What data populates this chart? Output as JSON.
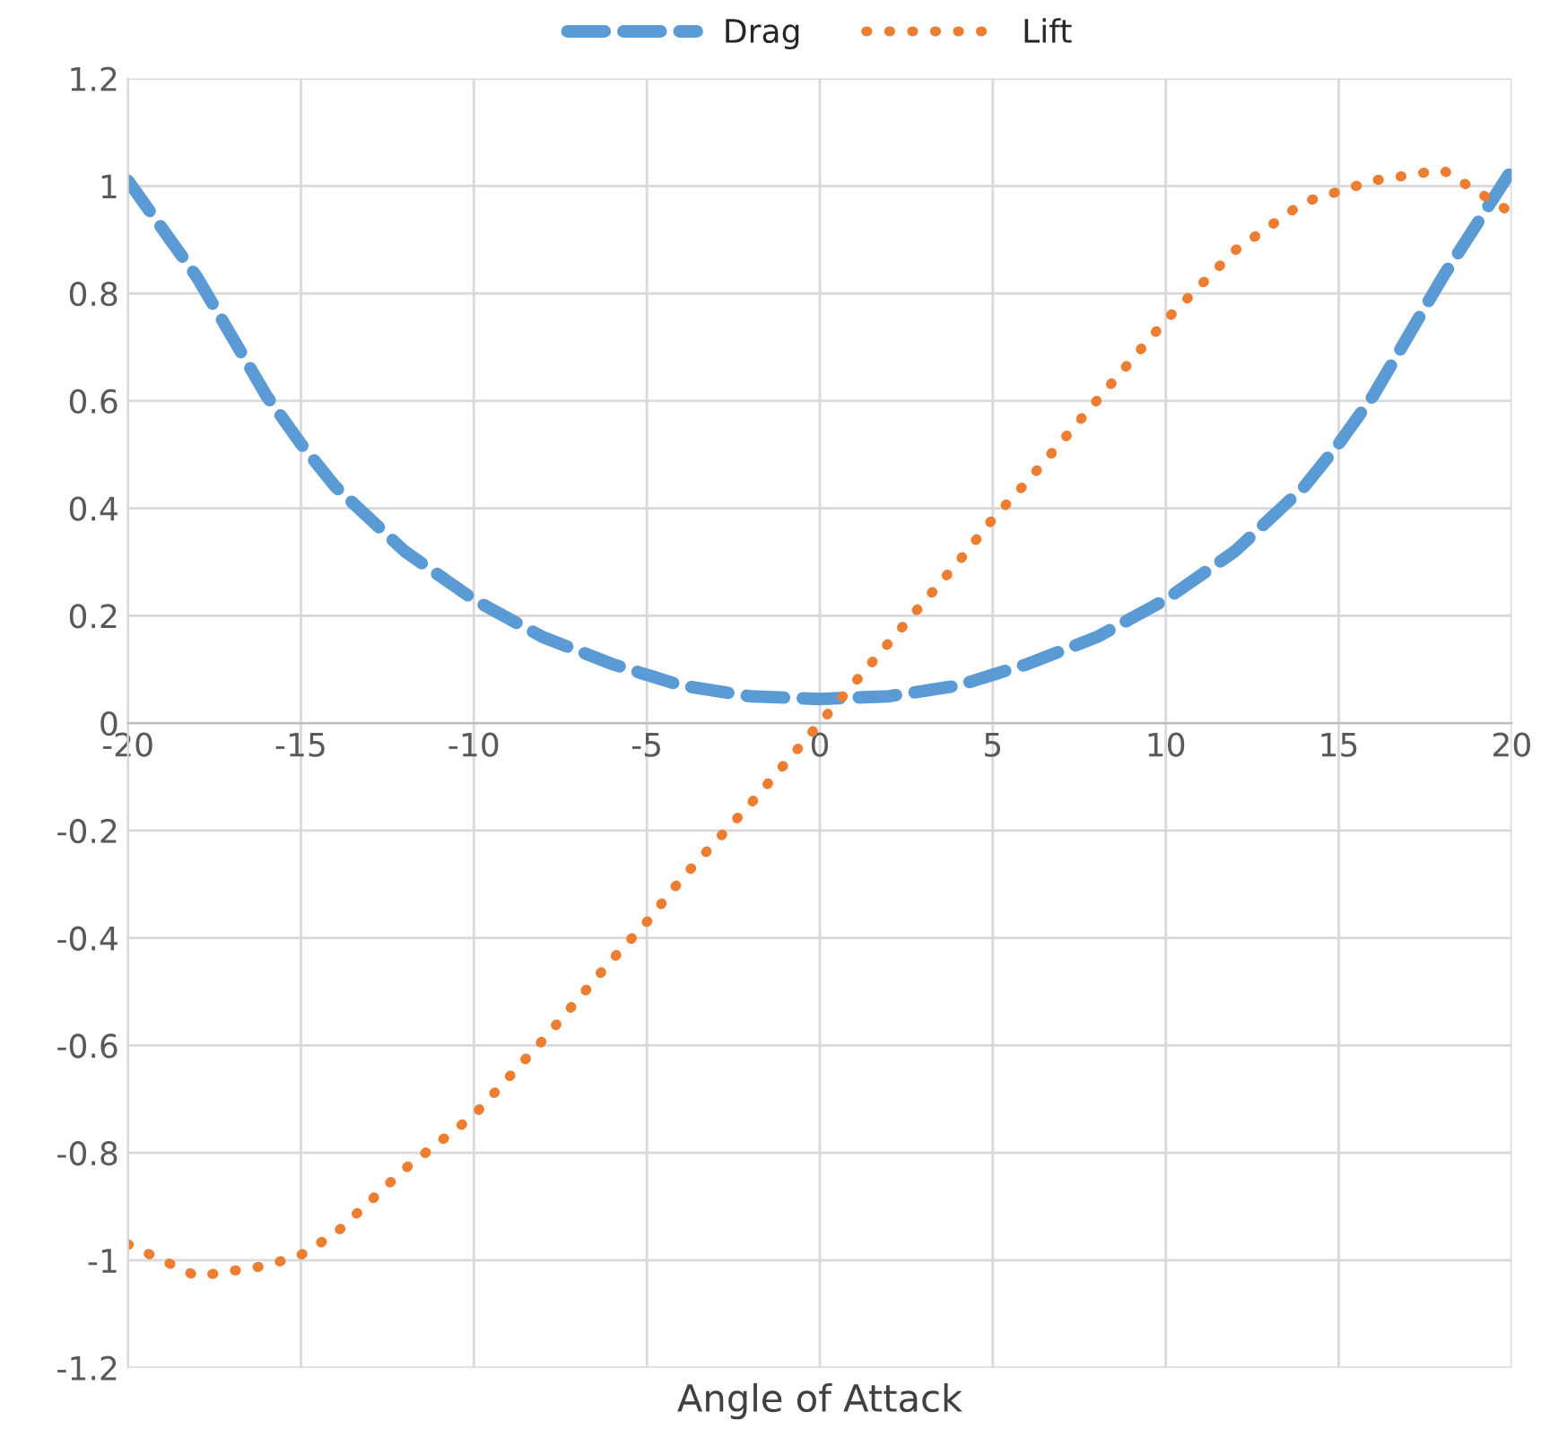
{
  "chart_data": {
    "type": "line",
    "xlabel": "Angle of Attack",
    "x": [
      -20,
      -18,
      -16,
      -15,
      -14,
      -12,
      -10,
      -8,
      -6,
      -5,
      -4,
      -2,
      0,
      2,
      4,
      5,
      6,
      8,
      10,
      12,
      14,
      15,
      16,
      18,
      20
    ],
    "series": [
      {
        "name": "Drag",
        "color": "#5b9bd5",
        "line_style": "dashed",
        "values": [
          1.01,
          0.83,
          0.61,
          0.52,
          0.44,
          0.32,
          0.23,
          0.16,
          0.11,
          0.09,
          0.07,
          0.05,
          0.045,
          0.05,
          0.07,
          0.09,
          0.11,
          0.16,
          0.23,
          0.32,
          0.44,
          0.52,
          0.61,
          0.83,
          1.03
        ]
      },
      {
        "name": "Lift",
        "color": "#ed7d31",
        "line_style": "dotted",
        "values": [
          -0.97,
          -1.03,
          -1.01,
          -0.99,
          -0.95,
          -0.83,
          -0.73,
          -0.59,
          -0.44,
          -0.37,
          -0.29,
          -0.15,
          0,
          0.15,
          0.3,
          0.38,
          0.45,
          0.6,
          0.75,
          0.88,
          0.97,
          0.99,
          1.01,
          1.03,
          0.95
        ]
      }
    ],
    "xlim": [
      -20,
      20
    ],
    "xticks": [
      -20,
      -15,
      -10,
      -5,
      0,
      5,
      10,
      15,
      20
    ],
    "ylim": [
      -1.2,
      1.2
    ],
    "yticks": [
      -1.2,
      -1,
      -0.8,
      -0.6,
      -0.4,
      -0.2,
      0,
      0.2,
      0.4,
      0.6,
      0.8,
      1,
      1.2
    ],
    "grid": true,
    "legend": "top",
    "marker": "none"
  }
}
